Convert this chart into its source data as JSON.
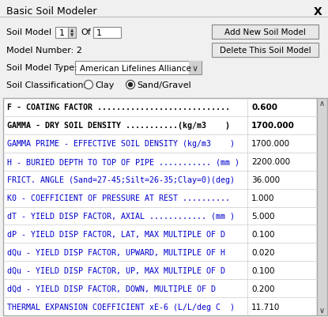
{
  "title": "Basic Soil Modeler",
  "close_symbol": "X",
  "soil_model_label": "Soil Model",
  "soil_model_value": "1",
  "of_label": "Of",
  "of_value": "1",
  "model_number_label": "Model Number: 2",
  "soil_model_type_label": "Soil Model Type:",
  "soil_model_type_value": "American Lifelines Alliance",
  "soil_classification_label": "Soil Classification:",
  "radio_clay": "Clay",
  "radio_sand": "Sand/Gravel",
  "bg_color": "#f0f0f0",
  "button_color": "#e8e8e8",
  "blue_text": "#0000cc",
  "black_text": "#000000",
  "title_bar_color": "#f0f0f0",
  "rows": [
    {
      "label": "F - COATING FACTOR ............................",
      "value": "0.600",
      "color": "black",
      "bold": true
    },
    {
      "label": "GAMMA - DRY SOIL DENSITY ...........(kg/m3    )",
      "value": "1700.000",
      "color": "black",
      "bold": true
    },
    {
      "label": "GAMMA PRIME - EFFECTIVE SOIL DENSITY (kg/m3    )",
      "value": "1700.000",
      "color": "blue",
      "bold": false
    },
    {
      "label": "H - BURIED DEPTH TO TOP OF PIPE ........... (mm )",
      "value": "2200.000",
      "color": "blue",
      "bold": false
    },
    {
      "label": "FRICT. ANGLE (Sand=27-45;Silt=26-35;Clay=0)(deg)",
      "value": "36.000",
      "color": "blue",
      "bold": false
    },
    {
      "label": "K0 - COEFFICIENT OF PRESSURE AT REST ..........",
      "value": "1.000",
      "color": "blue",
      "bold": false
    },
    {
      "label": "dT - YIELD DISP FACTOR, AXIAL ............ (mm )",
      "value": "5.000",
      "color": "blue",
      "bold": false
    },
    {
      "label": "dP - YIELD DISP FACTOR, LAT, MAX MULTIPLE OF D",
      "value": "0.100",
      "color": "blue",
      "bold": false
    },
    {
      "label": "dQu - YIELD DISP FACTOR, UPWARD, MULTIPLE OF H",
      "value": "0.020",
      "color": "blue",
      "bold": false
    },
    {
      "label": "dQu - YIELD DISP FACTOR, UP, MAX MULTIPLE OF D",
      "value": "0.100",
      "color": "blue",
      "bold": false
    },
    {
      "label": "dQd - YIELD DISP FACTOR, DOWN, MULTIPLE OF D",
      "value": "0.200",
      "color": "blue",
      "bold": false
    },
    {
      "label": "THERMAL EXPANSION COEFFICIENT xE-6 (L/L/deg C  )",
      "value": "11.710",
      "color": "blue",
      "bold": false
    }
  ]
}
